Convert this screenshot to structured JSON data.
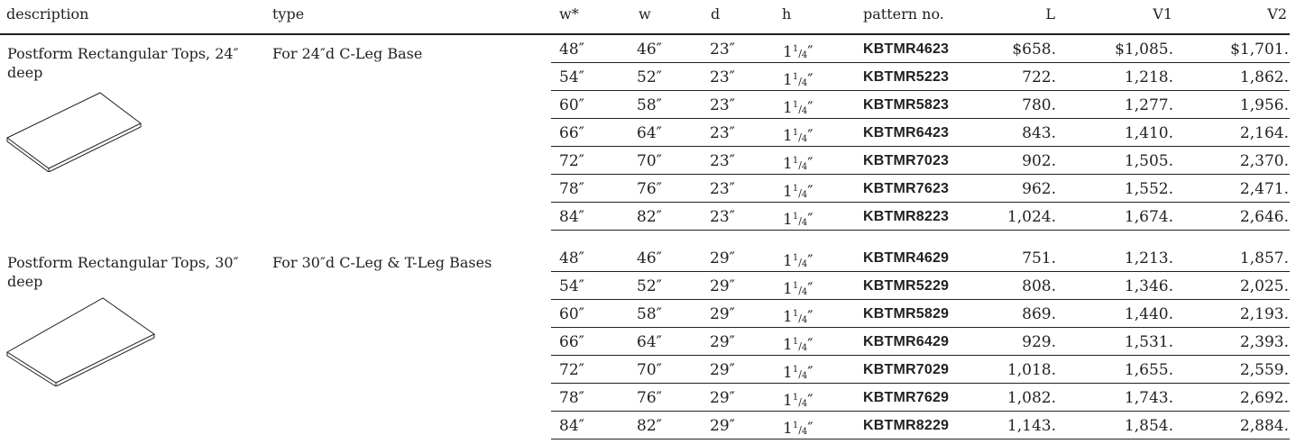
{
  "headers": {
    "description": "description",
    "type": "type",
    "w_star": "w*",
    "w": "w",
    "d": "d",
    "h": "h",
    "pattern": "pattern no.",
    "L": "L",
    "V1": "V1",
    "V2": "V2"
  },
  "groups": [
    {
      "description": "Postform Rectangular Tops, 24″ deep",
      "type": "For 24″d C-Leg Base",
      "rows": [
        {
          "wstar": "48″",
          "w": "46″",
          "d": "23″",
          "h_whole": "1",
          "h_num": "1",
          "h_den": "4",
          "h_unit": "″",
          "pattern": "KBTMR4623",
          "L": "$658.",
          "V1": "$1,085.",
          "V2": "$1,701."
        },
        {
          "wstar": "54″",
          "w": "52″",
          "d": "23″",
          "h_whole": "1",
          "h_num": "1",
          "h_den": "4",
          "h_unit": "″",
          "pattern": "KBTMR5223",
          "L": "722.",
          "V1": "1,218.",
          "V2": "1,862."
        },
        {
          "wstar": "60″",
          "w": "58″",
          "d": "23″",
          "h_whole": "1",
          "h_num": "1",
          "h_den": "4",
          "h_unit": "″",
          "pattern": "KBTMR5823",
          "L": "780.",
          "V1": "1,277.",
          "V2": "1,956."
        },
        {
          "wstar": "66″",
          "w": "64″",
          "d": "23″",
          "h_whole": "1",
          "h_num": "1",
          "h_den": "4",
          "h_unit": "″",
          "pattern": "KBTMR6423",
          "L": "843.",
          "V1": "1,410.",
          "V2": "2,164."
        },
        {
          "wstar": "72″",
          "w": "70″",
          "d": "23″",
          "h_whole": "1",
          "h_num": "1",
          "h_den": "4",
          "h_unit": "″",
          "pattern": "KBTMR7023",
          "L": "902.",
          "V1": "1,505.",
          "V2": "2,370."
        },
        {
          "wstar": "78″",
          "w": "76″",
          "d": "23″",
          "h_whole": "1",
          "h_num": "1",
          "h_den": "4",
          "h_unit": "″",
          "pattern": "KBTMR7623",
          "L": "962.",
          "V1": "1,552.",
          "V2": "2,471."
        },
        {
          "wstar": "84″",
          "w": "82″",
          "d": "23″",
          "h_whole": "1",
          "h_num": "1",
          "h_den": "4",
          "h_unit": "″",
          "pattern": "KBTMR8223",
          "L": "1,024.",
          "V1": "1,674.",
          "V2": "2,646."
        }
      ]
    },
    {
      "description": "Postform Rectangular Tops, 30″ deep",
      "type": "For 30″d C-Leg & T-Leg Bases",
      "rows": [
        {
          "wstar": "48″",
          "w": "46″",
          "d": "29″",
          "h_whole": "1",
          "h_num": "1",
          "h_den": "4",
          "h_unit": "″",
          "pattern": "KBTMR4629",
          "L": "751.",
          "V1": "1,213.",
          "V2": "1,857."
        },
        {
          "wstar": "54″",
          "w": "52″",
          "d": "29″",
          "h_whole": "1",
          "h_num": "1",
          "h_den": "4",
          "h_unit": "″",
          "pattern": "KBTMR5229",
          "L": "808.",
          "V1": "1,346.",
          "V2": "2,025."
        },
        {
          "wstar": "60″",
          "w": "58″",
          "d": "29″",
          "h_whole": "1",
          "h_num": "1",
          "h_den": "4",
          "h_unit": "″",
          "pattern": "KBTMR5829",
          "L": "869.",
          "V1": "1,440.",
          "V2": "2,193."
        },
        {
          "wstar": "66″",
          "w": "64″",
          "d": "29″",
          "h_whole": "1",
          "h_num": "1",
          "h_den": "4",
          "h_unit": "″",
          "pattern": "KBTMR6429",
          "L": "929.",
          "V1": "1,531.",
          "V2": "2,393."
        },
        {
          "wstar": "72″",
          "w": "70″",
          "d": "29″",
          "h_whole": "1",
          "h_num": "1",
          "h_den": "4",
          "h_unit": "″",
          "pattern": "KBTMR7029",
          "L": "1,018.",
          "V1": "1,655.",
          "V2": "2,559."
        },
        {
          "wstar": "78″",
          "w": "76″",
          "d": "29″",
          "h_whole": "1",
          "h_num": "1",
          "h_den": "4",
          "h_unit": "″",
          "pattern": "KBTMR7629",
          "L": "1,082.",
          "V1": "1,743.",
          "V2": "2,692."
        },
        {
          "wstar": "84″",
          "w": "82″",
          "d": "29″",
          "h_whole": "1",
          "h_num": "1",
          "h_den": "4",
          "h_unit": "″",
          "pattern": "KBTMR8229",
          "L": "1,143.",
          "V1": "1,854.",
          "V2": "2,884."
        }
      ]
    }
  ]
}
